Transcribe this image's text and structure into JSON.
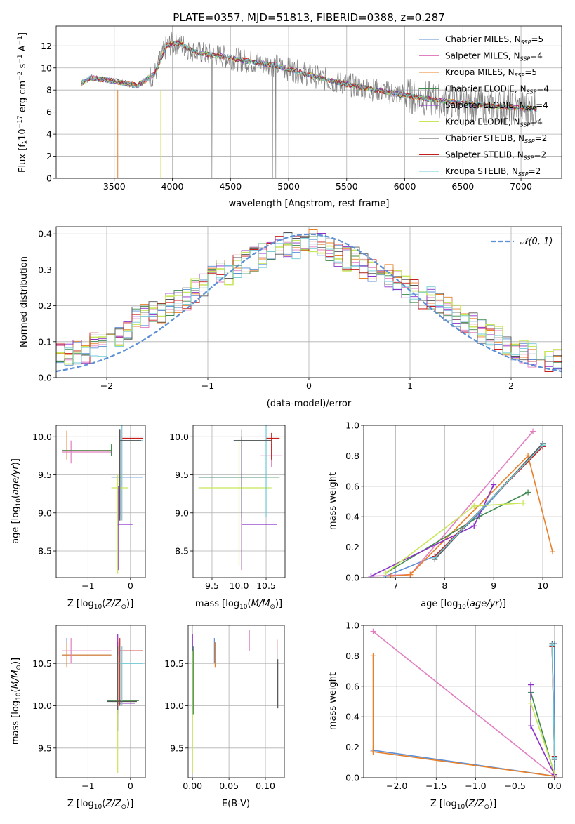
{
  "figure_title": "PLATE=0357, MJD=51813, FIBERID=0388, z=0.287",
  "colors": {
    "Chabrier MILES": "#5b8fd6",
    "Salpeter MILES": "#e27fc0",
    "Kroupa MILES": "#e8802a",
    "Chabrier ELODIE": "#3f8a4f",
    "Salpeter ELODIE": "#8b2fc9",
    "Kroupa ELODIE": "#c8e65a",
    "Chabrier STELIB": "#555555",
    "Salpeter STELIB": "#c81d1d",
    "Kroupa STELIB": "#6ec9d6",
    "data": "#808080",
    "gaussian": "#5b8fd6"
  },
  "chart_data": [
    {
      "id": "spectrum",
      "type": "line",
      "xlabel": "wavelength [Angstrom, rest frame]",
      "ylabel": "Flux [f_λ 10^-17 erg cm^-2 s^-1 A^-1]",
      "xlim": [
        3000,
        7350
      ],
      "ylim": [
        0,
        13.8
      ],
      "xticks": [
        3500,
        4000,
        4500,
        5000,
        5500,
        6000,
        6500,
        7000
      ],
      "yticks": [
        0,
        2,
        4,
        6,
        8,
        10,
        12
      ],
      "legend_position": "upper-right",
      "legend": [
        {
          "model": "Chabrier MILES",
          "nssp": "5"
        },
        {
          "model": "Salpeter MILES",
          "nssp": "4"
        },
        {
          "model": "Kroupa MILES",
          "nssp": "5"
        },
        {
          "model": "Chabrier ELODIE",
          "nssp": "4"
        },
        {
          "model": "Salpeter ELODIE",
          "nssp": "4"
        },
        {
          "model": "Kroupa ELODIE",
          "nssp": "4"
        },
        {
          "model": "Chabrier STELIB",
          "nssp": "2"
        },
        {
          "model": "Salpeter STELIB",
          "nssp": "2"
        },
        {
          "model": "Kroupa STELIB",
          "nssp": "2"
        }
      ],
      "continuum": {
        "x": [
          3210,
          3300,
          3500,
          3700,
          3850,
          3950,
          4050,
          4200,
          4400,
          4600,
          4850,
          5000,
          5300,
          5600,
          5900,
          6200,
          6500,
          6800,
          7100
        ],
        "y": [
          8.6,
          9.1,
          8.8,
          8.4,
          9.5,
          12.0,
          12.3,
          11.4,
          11.1,
          10.7,
          10.3,
          9.9,
          9.0,
          8.3,
          7.7,
          7.2,
          6.8,
          6.5,
          6.3
        ]
      }
    },
    {
      "id": "residuals",
      "type": "histogram",
      "xlabel": "(data-model)/error",
      "ylabel": "Normed distribution",
      "xlim": [
        -2.5,
        2.5
      ],
      "ylim": [
        0,
        0.42
      ],
      "xticks": [
        -2,
        -1,
        0,
        1,
        2
      ],
      "yticks": [
        0.0,
        0.1,
        0.2,
        0.3,
        0.4
      ],
      "legend_label": "N(0,1)",
      "bin_edges_range": [
        -2.5,
        2.5
      ],
      "hist": [
        0.06,
        0.06,
        0.07,
        0.07,
        0.09,
        0.09,
        0.1,
        0.11,
        0.14,
        0.17,
        0.17,
        0.19,
        0.18,
        0.2,
        0.21,
        0.22,
        0.24,
        0.26,
        0.28,
        0.3,
        0.29,
        0.31,
        0.32,
        0.33,
        0.34,
        0.35,
        0.36,
        0.37,
        0.36,
        0.37,
        0.38,
        0.37,
        0.36,
        0.34,
        0.33,
        0.33,
        0.31,
        0.3,
        0.29,
        0.28,
        0.27,
        0.25,
        0.24,
        0.22,
        0.22,
        0.2,
        0.19,
        0.17,
        0.16,
        0.15,
        0.13,
        0.12,
        0.11,
        0.09,
        0.08,
        0.07,
        0.06,
        0.05,
        0.05,
        0.05
      ]
    },
    {
      "id": "age-vs-Z",
      "type": "errorbar",
      "xlabel": "Z [log10(Z/Z☉)]",
      "ylabel": "age [log10(age/yr)]",
      "xlim": [
        -1.75,
        0.35
      ],
      "ylim": [
        8.15,
        10.15
      ],
      "xticks": [
        -1,
        0
      ],
      "yticks": [
        8.5,
        9.0,
        9.5,
        10.0
      ]
    },
    {
      "id": "age-vs-mass",
      "type": "errorbar",
      "xlabel": "mass [log10(M/M☉)]",
      "ylabel": "",
      "xlim": [
        9.15,
        10.85
      ],
      "ylim": [
        8.15,
        10.15
      ],
      "xticks": [
        9.5,
        10.0,
        10.5
      ],
      "yticks": [
        8.5,
        9.0,
        9.5,
        10.0
      ]
    },
    {
      "id": "weight-vs-age",
      "type": "line",
      "xlabel": "age [log10(age/yr)]",
      "ylabel": "mass weight",
      "xlim": [
        6.35,
        10.4
      ],
      "ylim": [
        0,
        1.0
      ],
      "xticks": [
        7,
        8,
        9,
        10
      ],
      "yticks": [
        0.0,
        0.2,
        0.4,
        0.6,
        0.8,
        1.0
      ],
      "series": [
        {
          "model": "Chabrier MILES",
          "x": [
            6.8,
            7.8,
            8.7,
            10.0
          ],
          "y": [
            0.01,
            0.14,
            0.42,
            0.88
          ]
        },
        {
          "model": "Salpeter MILES",
          "x": [
            6.5,
            7.3,
            9.8
          ],
          "y": [
            0.01,
            0.02,
            0.96
          ]
        },
        {
          "model": "Kroupa MILES",
          "x": [
            6.9,
            7.3,
            9.7,
            10.2
          ],
          "y": [
            0.01,
            0.02,
            0.8,
            0.17
          ]
        },
        {
          "model": "Chabrier ELODIE",
          "x": [
            6.8,
            8.7,
            9.7
          ],
          "y": [
            0.03,
            0.4,
            0.56
          ]
        },
        {
          "model": "Salpeter ELODIE",
          "x": [
            6.5,
            8.6,
            9.0
          ],
          "y": [
            0.01,
            0.34,
            0.61
          ]
        },
        {
          "model": "Kroupa ELODIE",
          "x": [
            6.8,
            8.6,
            9.6
          ],
          "y": [
            0.03,
            0.47,
            0.49
          ]
        },
        {
          "model": "Chabrier STELIB",
          "x": [
            7.8,
            10.0
          ],
          "y": [
            0.12,
            0.88
          ]
        },
        {
          "model": "Salpeter STELIB",
          "x": [
            7.8,
            10.0
          ],
          "y": [
            0.14,
            0.86
          ]
        },
        {
          "model": "Kroupa STELIB",
          "x": [
            7.8,
            10.0
          ],
          "y": [
            0.13,
            0.87
          ]
        }
      ]
    },
    {
      "id": "mass-vs-Z",
      "type": "errorbar",
      "xlabel": "Z [log10(Z/Z☉)]",
      "ylabel": "mass [log10(M/M☉)]",
      "xlim": [
        -1.75,
        0.35
      ],
      "ylim": [
        9.15,
        10.95
      ],
      "xticks": [
        -1,
        0
      ],
      "yticks": [
        9.5,
        10.0,
        10.5
      ]
    },
    {
      "id": "mass-vs-EBV",
      "type": "errorbar",
      "xlabel": "E(B-V)",
      "ylabel": "",
      "xlim": [
        -0.006,
        0.126
      ],
      "ylim": [
        9.15,
        10.95
      ],
      "xticks": [
        0.0,
        0.05,
        0.1
      ],
      "yticks": [
        9.5,
        10.0,
        10.5
      ]
    },
    {
      "id": "weight-vs-Z",
      "type": "line",
      "xlabel": "Z [log10(Z/Z☉)]",
      "ylabel": "mass weight",
      "xlim": [
        -2.42,
        0.1
      ],
      "ylim": [
        0,
        1.0
      ],
      "xticks": [
        -2.0,
        -1.5,
        -1.0,
        -0.5,
        0.0
      ],
      "yticks": [
        0.0,
        0.2,
        0.4,
        0.6,
        0.8,
        1.0
      ],
      "series": [
        {
          "model": "Chabrier MILES",
          "x": [
            -2.3,
            -0.0,
            -0.0
          ],
          "y": [
            0.18,
            0.01,
            0.88
          ]
        },
        {
          "model": "Salpeter MILES",
          "x": [
            -2.3,
            -0.0
          ],
          "y": [
            0.96,
            0.01
          ]
        },
        {
          "model": "Kroupa MILES",
          "x": [
            -2.3,
            -2.3,
            -0.0
          ],
          "y": [
            0.8,
            0.17,
            0.01
          ]
        },
        {
          "model": "Chabrier ELODIE",
          "x": [
            -0.3,
            -0.0
          ],
          "y": [
            0.56,
            0.02
          ]
        },
        {
          "model": "Salpeter ELODIE",
          "x": [
            -0.3,
            -0.3,
            -0.0
          ],
          "y": [
            0.61,
            0.34,
            0.02
          ]
        },
        {
          "model": "Kroupa ELODIE",
          "x": [
            -0.3,
            -0.0
          ],
          "y": [
            0.49,
            0.03
          ]
        },
        {
          "model": "Chabrier STELIB",
          "x": [
            -0.03,
            0.0
          ],
          "y": [
            0.88,
            0.12
          ]
        },
        {
          "model": "Salpeter STELIB",
          "x": [
            -0.03,
            0.0
          ],
          "y": [
            0.86,
            0.14
          ]
        },
        {
          "model": "Kroupa STELIB",
          "x": [
            -0.03,
            0.0
          ],
          "y": [
            0.87,
            0.13
          ]
        }
      ]
    }
  ]
}
